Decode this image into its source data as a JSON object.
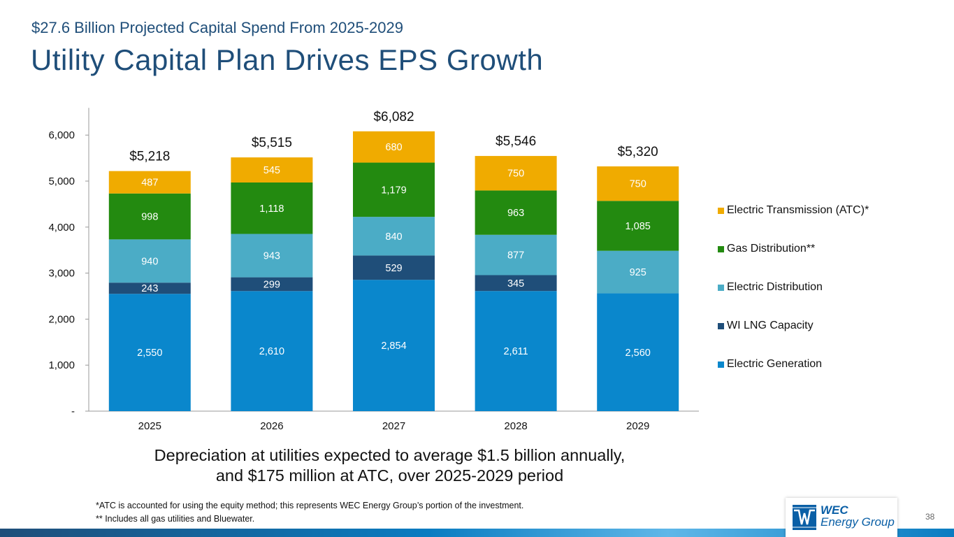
{
  "header": {
    "subtitle": "$27.6 Billion Projected Capital Spend From 2025-2029",
    "title": "Utility Capital Plan Drives EPS Growth"
  },
  "chart_data": {
    "type": "bar",
    "stacked": true,
    "categories": [
      "2025",
      "2026",
      "2027",
      "2028",
      "2029"
    ],
    "series": [
      {
        "name": "Electric Generation",
        "color": "#0A87CC",
        "label_color": "#ffffff",
        "values": [
          2550,
          2610,
          2854,
          2611,
          2560
        ],
        "labels": [
          "2,550",
          "2,610",
          "2,854",
          "2,611",
          "2,560"
        ]
      },
      {
        "name": "WI LNG Capacity",
        "color": "#1F4E79",
        "label_color": "#ffffff",
        "values": [
          243,
          299,
          529,
          345,
          0
        ],
        "labels": [
          "243",
          "299",
          "529",
          "345",
          ""
        ]
      },
      {
        "name": "Electric Distribution",
        "color": "#4BACC6",
        "label_color": "#ffffff",
        "values": [
          940,
          943,
          840,
          877,
          925
        ],
        "labels": [
          "940",
          "943",
          "840",
          "877",
          "925"
        ]
      },
      {
        "name": "Gas Distribution**",
        "color": "#238A10",
        "label_color": "#ffffff",
        "values": [
          998,
          1118,
          1179,
          963,
          1085
        ],
        "labels": [
          "998",
          "1,118",
          "1,179",
          "963",
          "1,085"
        ]
      },
      {
        "name": "Electric Transmission (ATC)*",
        "color": "#F0AB00",
        "label_color": "#ffffff",
        "values": [
          487,
          545,
          680,
          750,
          750
        ],
        "labels": [
          "487",
          "545",
          "680",
          "750",
          "750"
        ]
      }
    ],
    "totals": [
      "$5,218",
      "$5,515",
      "$6,082",
      "$5,546",
      "$5,320"
    ],
    "total_values": [
      5218,
      5515,
      6082,
      5546,
      5320
    ],
    "ylim": [
      0,
      6500
    ],
    "yticks": [
      0,
      1000,
      2000,
      3000,
      4000,
      5000,
      6000
    ],
    "ytick_labels": [
      "-",
      "1,000",
      "2,000",
      "3,000",
      "4,000",
      "5,000",
      "6,000"
    ],
    "legend_position": "right",
    "grid": false
  },
  "legend": [
    {
      "label": "Electric Transmission (ATC)*",
      "color": "#F0AB00"
    },
    {
      "label": "Gas Distribution**",
      "color": "#238A10"
    },
    {
      "label": "Electric Distribution",
      "color": "#4BACC6"
    },
    {
      "label": "WI LNG Capacity",
      "color": "#1F4E79"
    },
    {
      "label": "Electric Generation",
      "color": "#0A87CC"
    }
  ],
  "callout": {
    "line1": "Depreciation at utilities expected to average $1.5 billion annually,",
    "line2": "and $175 million at ATC, over 2025-2029 period"
  },
  "footnotes": {
    "note1": "*ATC is accounted for using the equity method; this represents WEC Energy Group’s portion of the investment.",
    "note2": "** Includes all gas utilities and Bluewater."
  },
  "logo": {
    "line1": "WEC",
    "line2": "Energy Group"
  },
  "page_number": "38"
}
